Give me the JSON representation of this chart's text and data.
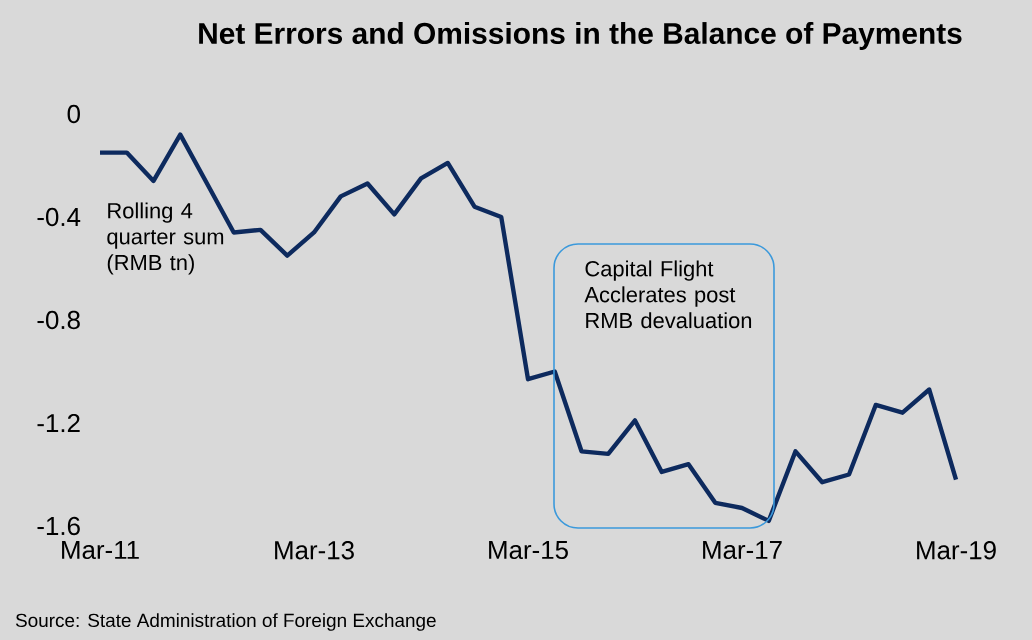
{
  "chart_data": {
    "type": "line",
    "title": "Net Errors and Omissions in the Balance of Payments",
    "ylabel": "Rolling 4 quarter sum (RMB tn)",
    "annotations": [
      "Capital Flight Acclerates post RMB devaluation",
      "Source: State Administration of Foreign Exchange"
    ],
    "x": [
      "2011-03",
      "2011-06",
      "2011-09",
      "2011-12",
      "2012-03",
      "2012-06",
      "2012-09",
      "2012-12",
      "2013-03",
      "2013-06",
      "2013-09",
      "2013-12",
      "2014-03",
      "2014-06",
      "2014-09",
      "2014-12",
      "2015-03",
      "2015-06",
      "2015-09",
      "2015-12",
      "2016-03",
      "2016-06",
      "2016-09",
      "2016-12",
      "2017-03",
      "2017-06",
      "2017-09",
      "2017-12",
      "2018-03",
      "2018-06",
      "2018-09",
      "2018-12",
      "2019-03"
    ],
    "series": [
      {
        "color": "#0d2a5e",
        "values": [
          -0.15,
          -0.15,
          -0.26,
          -0.08,
          -0.27,
          -0.46,
          -0.45,
          -0.55,
          -0.46,
          -0.32,
          -0.27,
          -0.39,
          -0.25,
          -0.19,
          -0.36,
          -0.4,
          -1.03,
          -1.0,
          -1.31,
          -1.32,
          -1.19,
          -1.39,
          -1.36,
          -1.51,
          -1.53,
          -1.58,
          -1.31,
          -1.43,
          -1.4,
          -1.13,
          -1.16,
          -1.07,
          -1.42
        ]
      }
    ],
    "xlim": [
      "2011-03",
      "2019-03"
    ],
    "xticks": [
      {
        "value": "2011-03",
        "label": "Mar-11"
      },
      {
        "value": "2013-03",
        "label": "Mar-13"
      },
      {
        "value": "2015-03",
        "label": "Mar-15"
      },
      {
        "value": "2017-03",
        "label": "Mar-17"
      },
      {
        "value": "2019-03",
        "label": "Mar-19"
      }
    ],
    "ylim": [
      -1.6,
      0
    ],
    "yticks": [
      0,
      -0.4,
      -0.8,
      -1.2,
      -1.6
    ],
    "grid": false,
    "marker": "none",
    "line_style": "solid"
  }
}
